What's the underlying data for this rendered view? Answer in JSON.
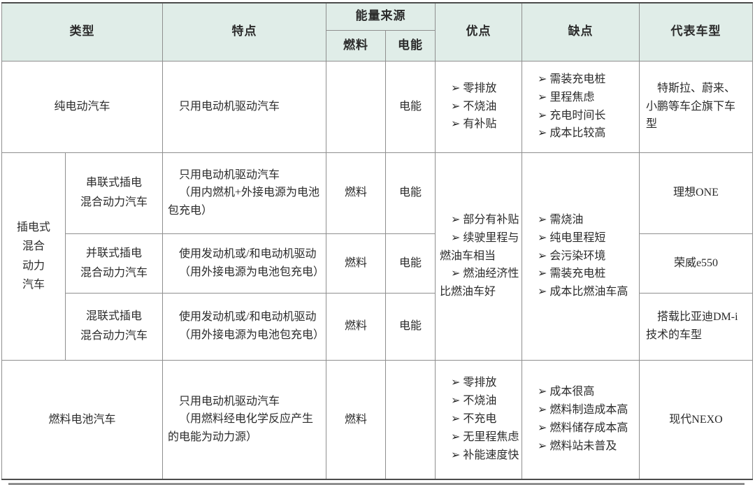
{
  "table": {
    "header": {
      "col_type": "类型",
      "col_features": "特点",
      "col_energy": "能量来源",
      "col_fuel": "燃料",
      "col_electric": "电能",
      "col_pros": "优点",
      "col_cons": "缺点",
      "col_models": "代表车型"
    },
    "bev": {
      "type": "纯电动汽车",
      "features": [
        "只用电动机驱动汽车"
      ],
      "fuel": "",
      "electric": "电能",
      "pros": [
        "➢ 零排放",
        "➢ 不烧油",
        "➢ 有补贴"
      ],
      "cons": [
        "➢ 需装充电桩",
        "➢ 里程焦虑",
        "➢ 充电时间长",
        "➢ 成本比较高"
      ],
      "models": "特斯拉、蔚来、小鹏等车企旗下车型"
    },
    "phev": {
      "group_label": [
        "插电式",
        "混合",
        "动力",
        "汽车"
      ],
      "pros": [
        "➢ 部分有补贴",
        "➢ 续驶里程与燃油车相当",
        "➢ 燃油经济性比燃油车好"
      ],
      "cons": [
        "➢ 需烧油",
        "➢ 纯电里程短",
        "➢ 会污染环境",
        "➢ 需装充电桩",
        "➢ 成本比燃油车高"
      ],
      "sub_rows": [
        {
          "type": [
            "串联式插电",
            "混合动力汽车"
          ],
          "features": [
            "只用电动机驱动汽车",
            "（用内燃机+外接电源为电池包充电）"
          ],
          "fuel": "燃料",
          "electric": "电能",
          "models": "理想ONE"
        },
        {
          "type": [
            "并联式插电",
            "混合动力汽车"
          ],
          "features": [
            "使用发动机或/和电动机驱动",
            "（用外接电源为电池包充电）"
          ],
          "fuel": "燃料",
          "electric": "电能",
          "models": "荣威e550"
        },
        {
          "type": [
            "混联式插电",
            "混合动力汽车"
          ],
          "features": [
            "使用发动机或/和电动机驱动",
            "（用外接电源为电池包充电）"
          ],
          "fuel": "燃料",
          "electric": "电能",
          "models": "搭载比亚迪DM-i技术的车型"
        }
      ]
    },
    "fcev": {
      "type": "燃料电池汽车",
      "features": [
        "只用电动机驱动汽车",
        "（用燃料经电化学反应产生的电能为动力源）"
      ],
      "fuel": "燃料",
      "electric": "",
      "pros": [
        "➢ 零排放",
        "➢ 不烧油",
        "➢ 不充电",
        "➢ 无里程焦虑",
        "➢ 补能速度快"
      ],
      "cons": [
        "➢ 成本很高",
        "➢ 燃料制造成本高",
        "➢ 燃料储存成本高",
        "➢ 燃料站未普及"
      ],
      "models": "现代NEXO"
    },
    "colors": {
      "header_bg": "#e0ede8",
      "border": "#8f8f8f",
      "outer_border": "#4c4c4c",
      "text": "#2b2b2b"
    }
  }
}
